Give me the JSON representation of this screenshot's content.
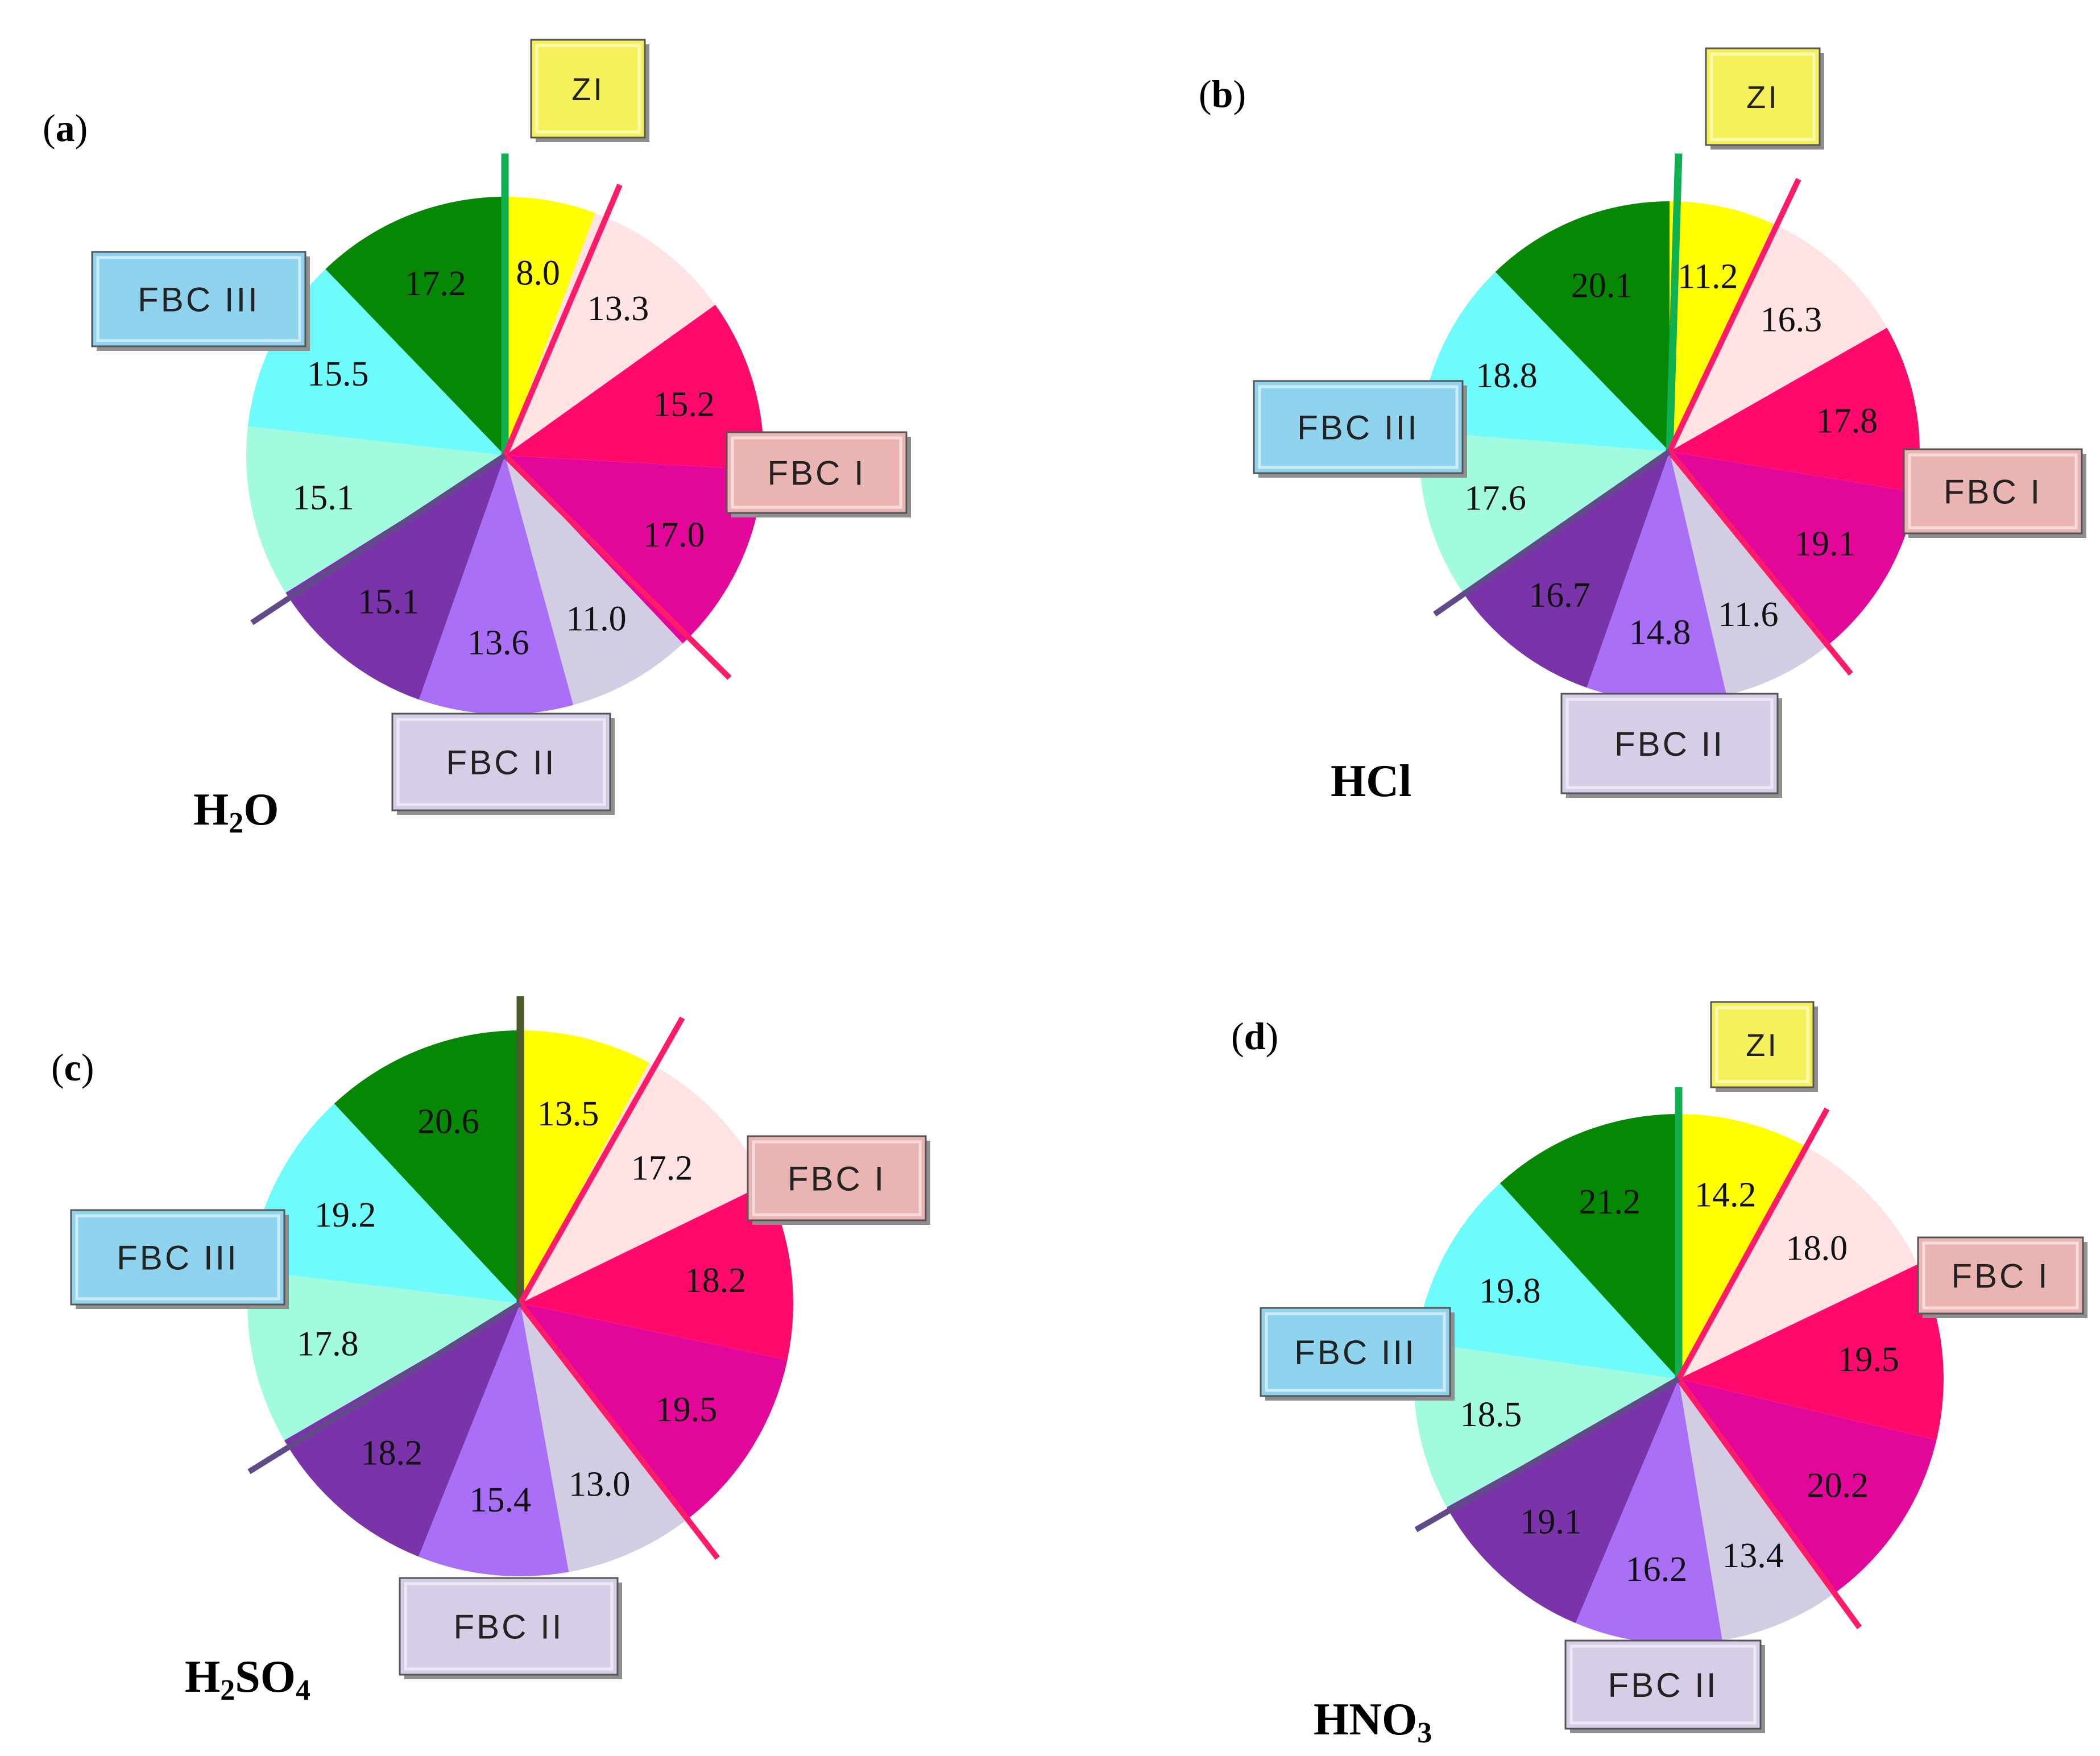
{
  "figure": {
    "panels": [
      "a",
      "b",
      "c",
      "d"
    ]
  },
  "colors": {
    "slices": [
      "#ffff00",
      "#ffe3e3",
      "#ff0a6c",
      "#e20799",
      "#d3cde3",
      "#a970f7",
      "#7a33a9",
      "#a2fadf",
      "#6efbfb",
      "#068705"
    ],
    "zi_label": "#f6f15a",
    "fbc1_label": "#eab4b2",
    "fbc2_label": "#d8cde6",
    "fbc3_label": "#8fd3ee",
    "zi_line": "#0fb050",
    "fbc1_line": "#ff1a6a",
    "fbc3_line": "#624a8a",
    "zi_line_c": "#4a5a2a"
  },
  "chart_data": [
    {
      "type": "pie",
      "panel": "(a)",
      "panel_letter": "a",
      "solvent": "H",
      "solvent_parts": [
        {
          "t": "H",
          "sub": false
        },
        {
          "t": "2",
          "sub": true
        },
        {
          "t": "O",
          "sub": false
        }
      ],
      "values": [
        8.0,
        13.3,
        15.2,
        17.0,
        11.0,
        13.6,
        15.1,
        15.1,
        15.5,
        17.2
      ],
      "labels": [
        "8.0",
        "13.3",
        "15.2",
        "17.0",
        "11.0",
        "13.6",
        "15.1",
        "15.1",
        "15.5",
        "17.2"
      ],
      "zones": {
        "ZI": "ZI",
        "FBC_I": "FBC I",
        "FBC_II": "FBC II",
        "FBC_III": "FBC III"
      }
    },
    {
      "type": "pie",
      "panel": "(b)",
      "panel_letter": "b",
      "solvent": "HCl",
      "solvent_parts": [
        {
          "t": "HCl",
          "sub": false
        }
      ],
      "values": [
        11.2,
        16.3,
        17.8,
        19.1,
        11.6,
        14.8,
        16.7,
        17.6,
        18.8,
        20.1
      ],
      "labels": [
        "11.2",
        "16.3",
        "17.8",
        "19.1",
        "11.6",
        "14.8",
        "16.7",
        "17.6",
        "18.8",
        "20.1"
      ],
      "zones": {
        "ZI": "ZI",
        "FBC_I": "FBC I",
        "FBC_II": "FBC II",
        "FBC_III": "FBC III"
      }
    },
    {
      "type": "pie",
      "panel": "(c)",
      "panel_letter": "c",
      "solvent": "H2SO4",
      "solvent_parts": [
        {
          "t": "H",
          "sub": false
        },
        {
          "t": "2",
          "sub": true
        },
        {
          "t": "SO",
          "sub": false
        },
        {
          "t": "4",
          "sub": true
        }
      ],
      "values": [
        13.5,
        17.2,
        18.2,
        19.5,
        13.0,
        15.4,
        18.2,
        17.8,
        19.2,
        20.6
      ],
      "labels": [
        "13.5",
        "17.2",
        "18.2",
        "19.5",
        "13.0",
        "15.4",
        "18.2",
        "17.8",
        "19.2",
        "20.6"
      ],
      "zones": {
        "ZI": "",
        "FBC_I": "FBC I",
        "FBC_II": "FBC II",
        "FBC_III": "FBC III"
      }
    },
    {
      "type": "pie",
      "panel": "(d)",
      "panel_letter": "d",
      "solvent": "HNO3",
      "solvent_parts": [
        {
          "t": "HNO",
          "sub": false
        },
        {
          "t": "3",
          "sub": true
        }
      ],
      "values": [
        14.2,
        18.0,
        19.5,
        20.2,
        13.4,
        16.2,
        19.1,
        18.5,
        19.8,
        21.2
      ],
      "labels": [
        "14.2",
        "18.0",
        "19.5",
        "20.2",
        "13.4",
        "16.2",
        "19.1",
        "18.5",
        "19.8",
        "21.2"
      ],
      "zones": {
        "ZI": "ZI",
        "FBC_I": "FBC I",
        "FBC_II": "FBC II",
        "FBC_III": "FBC III"
      }
    }
  ]
}
